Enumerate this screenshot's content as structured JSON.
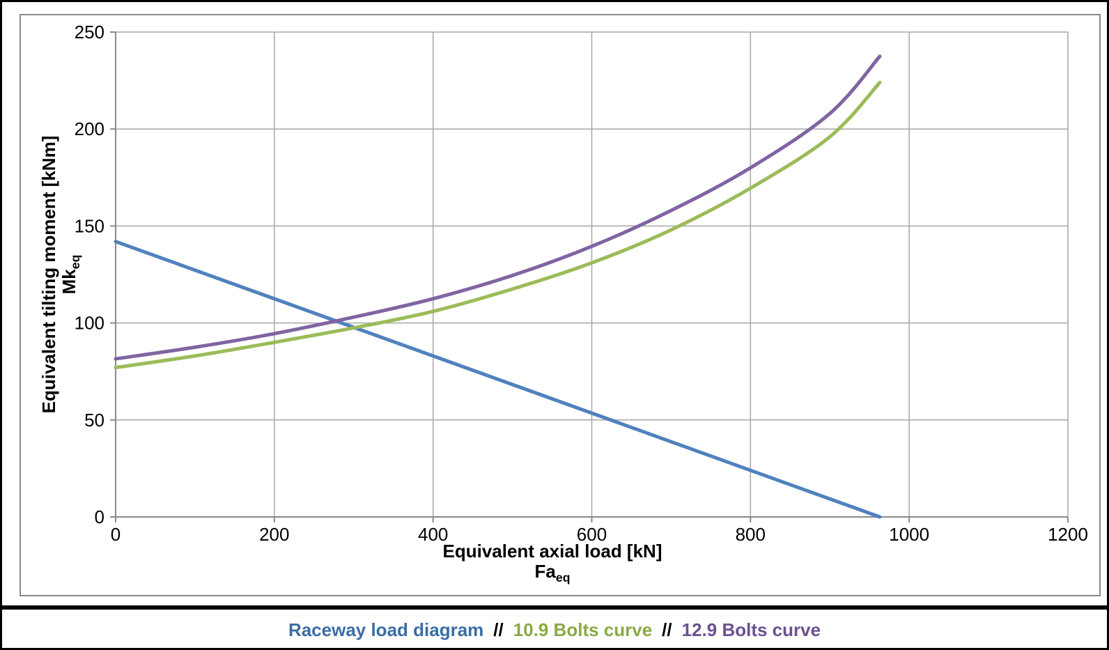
{
  "axes": {
    "x": {
      "title": "Equivalent axial load [kN]",
      "symbol_base": "Fa",
      "symbol_sub": "eq",
      "ticks": [
        0,
        200,
        400,
        600,
        800,
        1000,
        1200
      ],
      "min": 0,
      "max": 1200
    },
    "y": {
      "title": "Equivalent tilting moment [kNm]",
      "symbol_base": "Mk",
      "symbol_sub": "eq",
      "ticks": [
        0,
        50,
        100,
        150,
        200,
        250
      ],
      "min": 0,
      "max": 250
    }
  },
  "legend": {
    "separator": "//",
    "items": [
      {
        "label": "Raceway load diagram",
        "color": "#3A6EA5"
      },
      {
        "label": "10.9 Bolts curve",
        "color": "#8AA943"
      },
      {
        "label": "12.9 Bolts curve",
        "color": "#6A5190"
      }
    ]
  },
  "colors": {
    "gridline": "#A6A6A6",
    "axis_line": "#898989",
    "chart_frame": "#898989",
    "tick_label": "#000000"
  },
  "chart_data": {
    "type": "line",
    "title": "",
    "xlabel": "Equivalent axial load [kN] Faeq",
    "ylabel": "Equivalent tilting moment [kNm] Mkeq",
    "xlim": [
      0,
      1200
    ],
    "ylim": [
      0,
      250
    ],
    "x_ticks": [
      0,
      200,
      400,
      600,
      800,
      1000,
      1200
    ],
    "y_ticks": [
      0,
      50,
      100,
      150,
      200,
      250
    ],
    "grid": true,
    "legend_position": "bottom-caption",
    "series": [
      {
        "name": "Raceway load diagram",
        "color": "#4F81BD",
        "smooth": false,
        "points": [
          [
            0,
            142
          ],
          [
            963,
            0
          ]
        ]
      },
      {
        "name": "10.9 Bolts curve",
        "color": "#9BBB59",
        "smooth": true,
        "points": [
          [
            0,
            77
          ],
          [
            100,
            83
          ],
          [
            200,
            90
          ],
          [
            300,
            97.5
          ],
          [
            400,
            106
          ],
          [
            500,
            117.5
          ],
          [
            600,
            131
          ],
          [
            700,
            148
          ],
          [
            800,
            169.5
          ],
          [
            900,
            196
          ],
          [
            963,
            224
          ]
        ]
      },
      {
        "name": "12.9 Bolts curve",
        "color": "#8064A2",
        "smooth": true,
        "points": [
          [
            0,
            81.5
          ],
          [
            100,
            87.5
          ],
          [
            200,
            94.5
          ],
          [
            300,
            103
          ],
          [
            400,
            112.5
          ],
          [
            500,
            124.5
          ],
          [
            600,
            139.5
          ],
          [
            700,
            158
          ],
          [
            800,
            180
          ],
          [
            900,
            208
          ],
          [
            963,
            237.5
          ]
        ]
      }
    ]
  }
}
